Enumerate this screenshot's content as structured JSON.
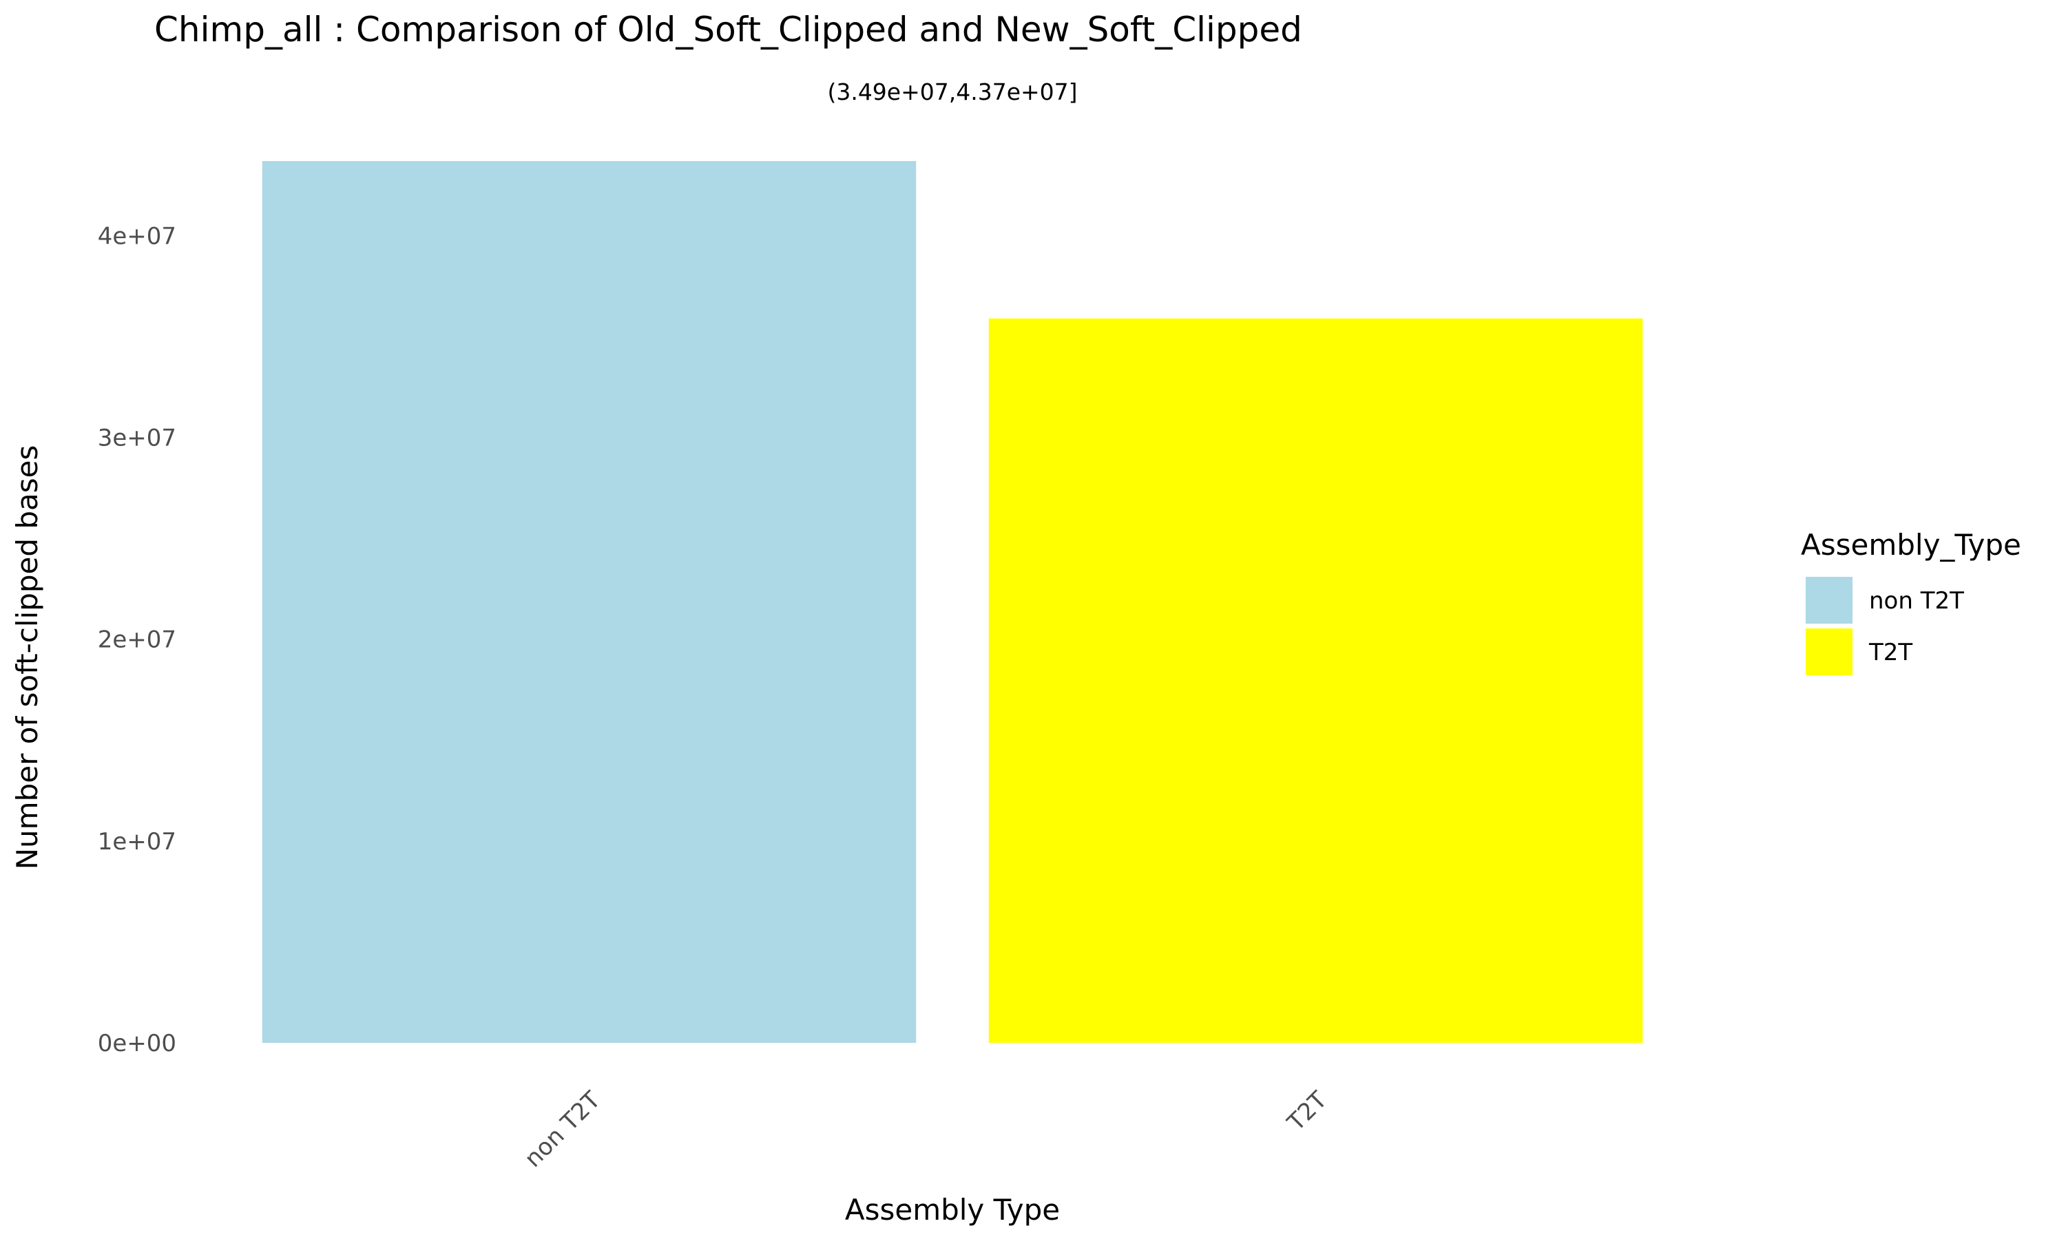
{
  "chart_data": {
    "type": "bar",
    "title": "Chimp_all : Comparison of Old_Soft_Clipped and New_Soft_Clipped",
    "subtitle": "(3.49e+07,4.37e+07]",
    "xlabel": "Assembly Type",
    "ylabel": "Number of soft-clipped bases",
    "categories": [
      "non T2T",
      "T2T"
    ],
    "values": [
      43700000,
      35900000
    ],
    "colors": [
      "#add8e6",
      "#ffff00"
    ],
    "ylim": [
      0,
      43700000
    ],
    "yticks": [
      0,
      10000000,
      20000000,
      30000000,
      40000000
    ],
    "ytick_labels": [
      "0e+00",
      "1e+07",
      "2e+07",
      "3e+07",
      "4e+07"
    ],
    "grid": false,
    "legend": {
      "title": "Assembly_Type",
      "position": "right",
      "entries": [
        {
          "label": "non T2T",
          "color": "#add8e6"
        },
        {
          "label": "T2T",
          "color": "#ffff00"
        }
      ]
    }
  }
}
